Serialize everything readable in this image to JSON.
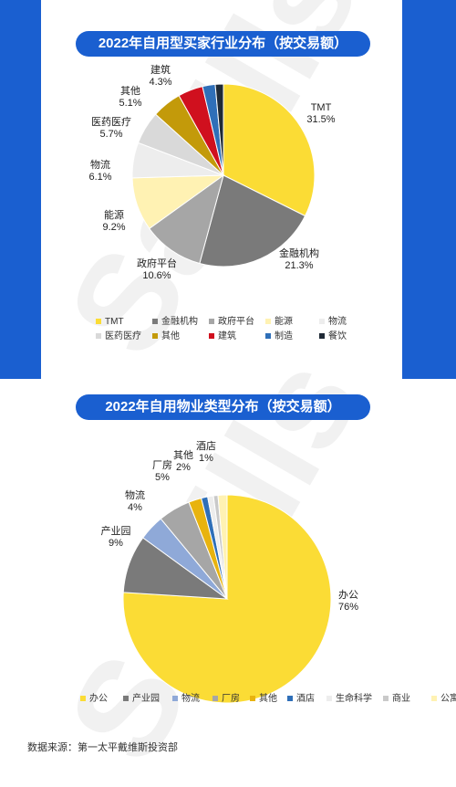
{
  "watermark": "Savills",
  "source_text": "数据来源：第一太平戴维斯投资部",
  "chart_data": [
    {
      "type": "pie",
      "title": "2022年自用型买家行业分布（按交易额）",
      "categories": [
        "TMT",
        "金融机构",
        "政府平台",
        "能源",
        "物流",
        "医药医疗",
        "其他",
        "建筑",
        "制造",
        "餐饮"
      ],
      "values": [
        31.5,
        21.3,
        10.6,
        9.2,
        6.1,
        5.7,
        5.1,
        4.3,
        2.2,
        1.4
      ],
      "value_labels": [
        "31.5%",
        "21.3%",
        "10.6%",
        "9.2%",
        "6.1%",
        "5.7%",
        "5.1%",
        "4.3%",
        "",
        ""
      ],
      "colors": [
        "#fbdc35",
        "#7a7a7a",
        "#a6a6a6",
        "#fff2b3",
        "#ededed",
        "#d9d9d9",
        "#c39a0a",
        "#d0101e",
        "#2f6fb8",
        "#1f2a36"
      ],
      "legend_position": "bottom"
    },
    {
      "type": "pie",
      "title": "2022年自用物业类型分布（按交易额）",
      "categories": [
        "办公",
        "产业园",
        "物流",
        "厂房",
        "其他",
        "酒店",
        "生命科学",
        "商业",
        "公寓"
      ],
      "values": [
        76,
        9,
        4,
        5,
        2,
        1,
        0.9,
        0.7,
        1.4
      ],
      "value_labels": [
        "76%",
        "9%",
        "4%",
        "5%",
        "2%",
        "1%",
        "",
        "",
        ""
      ],
      "colors": [
        "#fbdc35",
        "#7a7a7a",
        "#8fa9d8",
        "#a6a6a6",
        "#e8b30e",
        "#2f6fb8",
        "#ededed",
        "#c9c9c9",
        "#fff2b3"
      ],
      "legend_position": "bottom"
    }
  ]
}
